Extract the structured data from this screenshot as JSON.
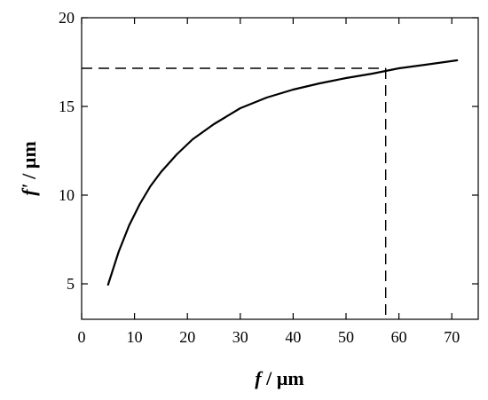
{
  "chart_data": {
    "type": "line",
    "xlabel": {
      "symbol": "f",
      "unit": " / µm"
    },
    "ylabel": {
      "symbol": "f'",
      "unit": " / µm"
    },
    "xlim": [
      0,
      75
    ],
    "ylim": [
      3,
      20
    ],
    "xticks": [
      0,
      10,
      20,
      30,
      40,
      50,
      60,
      70
    ],
    "yticks": [
      5,
      10,
      15,
      20
    ],
    "grid": false,
    "series": [
      {
        "style": "solid",
        "color": "#000000",
        "x": [
          5,
          7,
          9,
          11,
          13,
          15,
          18,
          21,
          25,
          30,
          35,
          40,
          45,
          50,
          55,
          60,
          65,
          71
        ],
        "y": [
          4.95,
          6.8,
          8.3,
          9.5,
          10.5,
          11.3,
          12.3,
          13.15,
          14.0,
          14.9,
          15.5,
          15.95,
          16.3,
          16.6,
          16.85,
          17.15,
          17.35,
          17.6
        ]
      }
    ],
    "reference_lines": [
      {
        "style": "dashed",
        "x": [
          0,
          57.5
        ],
        "y": [
          17.15,
          17.15
        ]
      },
      {
        "style": "dashed",
        "x": [
          57.5,
          57.5
        ],
        "y": [
          17.15,
          3
        ]
      }
    ]
  }
}
